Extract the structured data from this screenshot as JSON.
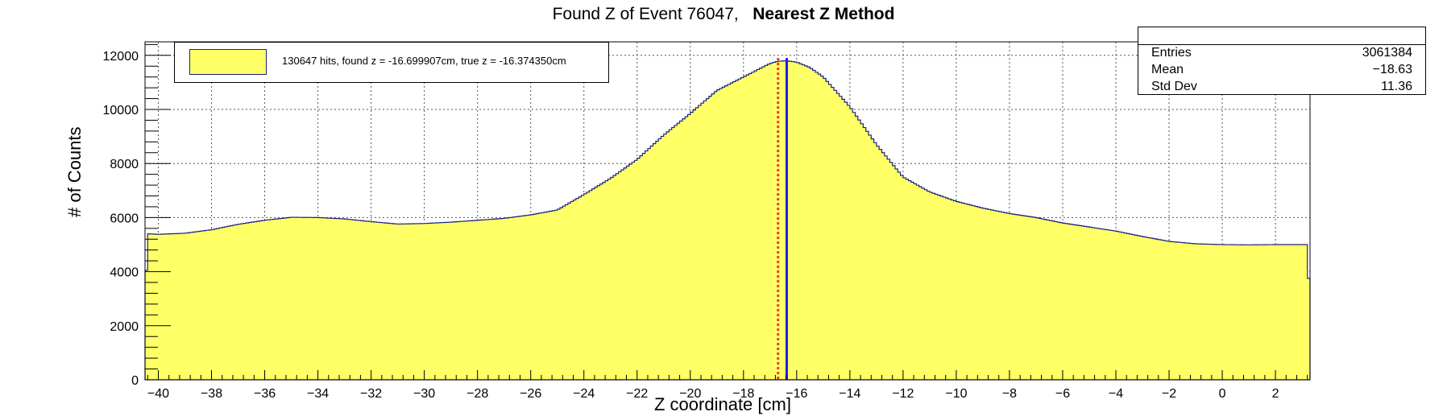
{
  "title_plain": "Found Z of Event 76047,",
  "title_bold": "Nearest Z Method",
  "legend": {
    "entry": "130647 hits, found z = -16.699907cm, true z = -16.374350cm"
  },
  "stats": {
    "rows": [
      {
        "key": "Entries",
        "value": "3061384"
      },
      {
        "key": "Mean",
        "value": "−18.63"
      },
      {
        "key": "Std Dev",
        "value": "11.36"
      }
    ]
  },
  "colors": {
    "fill": "#ffff66",
    "outline": "#1a237e",
    "found_line": "#e53935",
    "true_line": "#1a1aff"
  },
  "chart_data": {
    "type": "area",
    "title": "Found Z of Event 76047,   Nearest Z Method",
    "xlabel": "Z coordinate [cm]",
    "ylabel": "# of Counts",
    "xlim": [
      -40.5,
      3.3
    ],
    "ylim": [
      0,
      12500
    ],
    "grid": true,
    "xticks": [
      -40,
      -38,
      -36,
      -34,
      -32,
      -30,
      -28,
      -26,
      -24,
      -22,
      -20,
      -18,
      -16,
      -14,
      -12,
      -10,
      -8,
      -6,
      -4,
      -2,
      0,
      2
    ],
    "yticks": [
      0,
      2000,
      4000,
      6000,
      8000,
      10000,
      12000
    ],
    "x": [
      -40.5,
      -40.4,
      -40,
      -39,
      -38,
      -37,
      -36,
      -35,
      -34,
      -33,
      -32,
      -31,
      -30,
      -29,
      -28,
      -27,
      -26,
      -25,
      -24,
      -23,
      -22,
      -21,
      -20,
      -19,
      -18,
      -17.5,
      -17,
      -16.7,
      -16.4,
      -16,
      -15.5,
      -15,
      -14,
      -13,
      -12,
      -11,
      -10,
      -9,
      -8,
      -7,
      -6,
      -5,
      -4,
      -3,
      -2,
      -1,
      0,
      1,
      2,
      3.2,
      3.3
    ],
    "y": [
      2700,
      5400,
      5380,
      5420,
      5550,
      5750,
      5900,
      6010,
      6000,
      5950,
      5850,
      5760,
      5780,
      5830,
      5900,
      5970,
      6100,
      6280,
      6850,
      7450,
      8150,
      9050,
      9850,
      10700,
      11200,
      11450,
      11700,
      11780,
      11800,
      11750,
      11550,
      11200,
      10100,
      8700,
      7500,
      6950,
      6600,
      6350,
      6150,
      6000,
      5800,
      5650,
      5500,
      5300,
      5120,
      5030,
      5000,
      4990,
      5000,
      5000,
      2500
    ],
    "vlines": [
      {
        "x": -16.699907,
        "style": "dotted"
      },
      {
        "x": -16.37435,
        "style": "solid"
      }
    ]
  }
}
